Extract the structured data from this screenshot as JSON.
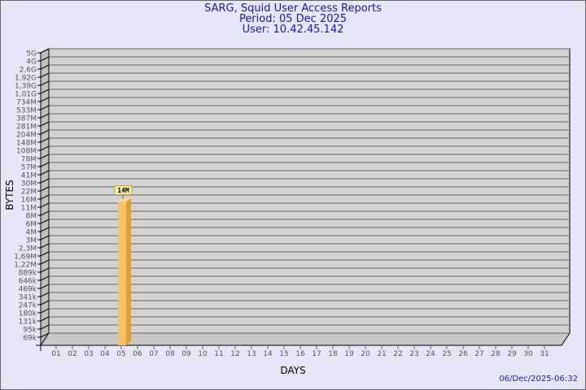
{
  "header": {
    "title": "SARG, Squid User Access Reports",
    "period": "Period: 05 Dec 2025",
    "user": "User: 10.42.45.142"
  },
  "footer": {
    "timestamp": "06/Dec/2025-06:32"
  },
  "colors": {
    "background": "#e6e6f8",
    "plot": "#d3d3d3",
    "bar": "#f8c060",
    "bar_side": "#e09a40",
    "title": "#1a1aa0"
  },
  "chart_data": {
    "type": "bar",
    "title": "SARG, Squid User Access Reports",
    "xlabel": "DAYS",
    "ylabel": "BYTES",
    "yscale": "log",
    "grid": true,
    "categories": [
      "01",
      "02",
      "03",
      "04",
      "05",
      "06",
      "07",
      "08",
      "09",
      "10",
      "11",
      "12",
      "13",
      "14",
      "15",
      "16",
      "17",
      "18",
      "19",
      "20",
      "21",
      "22",
      "23",
      "24",
      "25",
      "26",
      "27",
      "28",
      "29",
      "30",
      "31"
    ],
    "ytick_labels": [
      "5G",
      "4G",
      "2,6G",
      "1,92G",
      "1,39G",
      "1,01G",
      "734M",
      "533M",
      "387M",
      "281M",
      "204M",
      "148M",
      "108M",
      "78M",
      "57M",
      "41M",
      "30M",
      "22M",
      "16M",
      "11M",
      "8M",
      "6M",
      "4M",
      "3M",
      "2,3M",
      "1,69M",
      "1,22M",
      "889k",
      "646k",
      "469k",
      "341k",
      "247k",
      "180k",
      "131k",
      "95k",
      "69k"
    ],
    "bars": [
      {
        "category": "05",
        "value_bytes": 14000000,
        "label": "14M"
      }
    ]
  }
}
